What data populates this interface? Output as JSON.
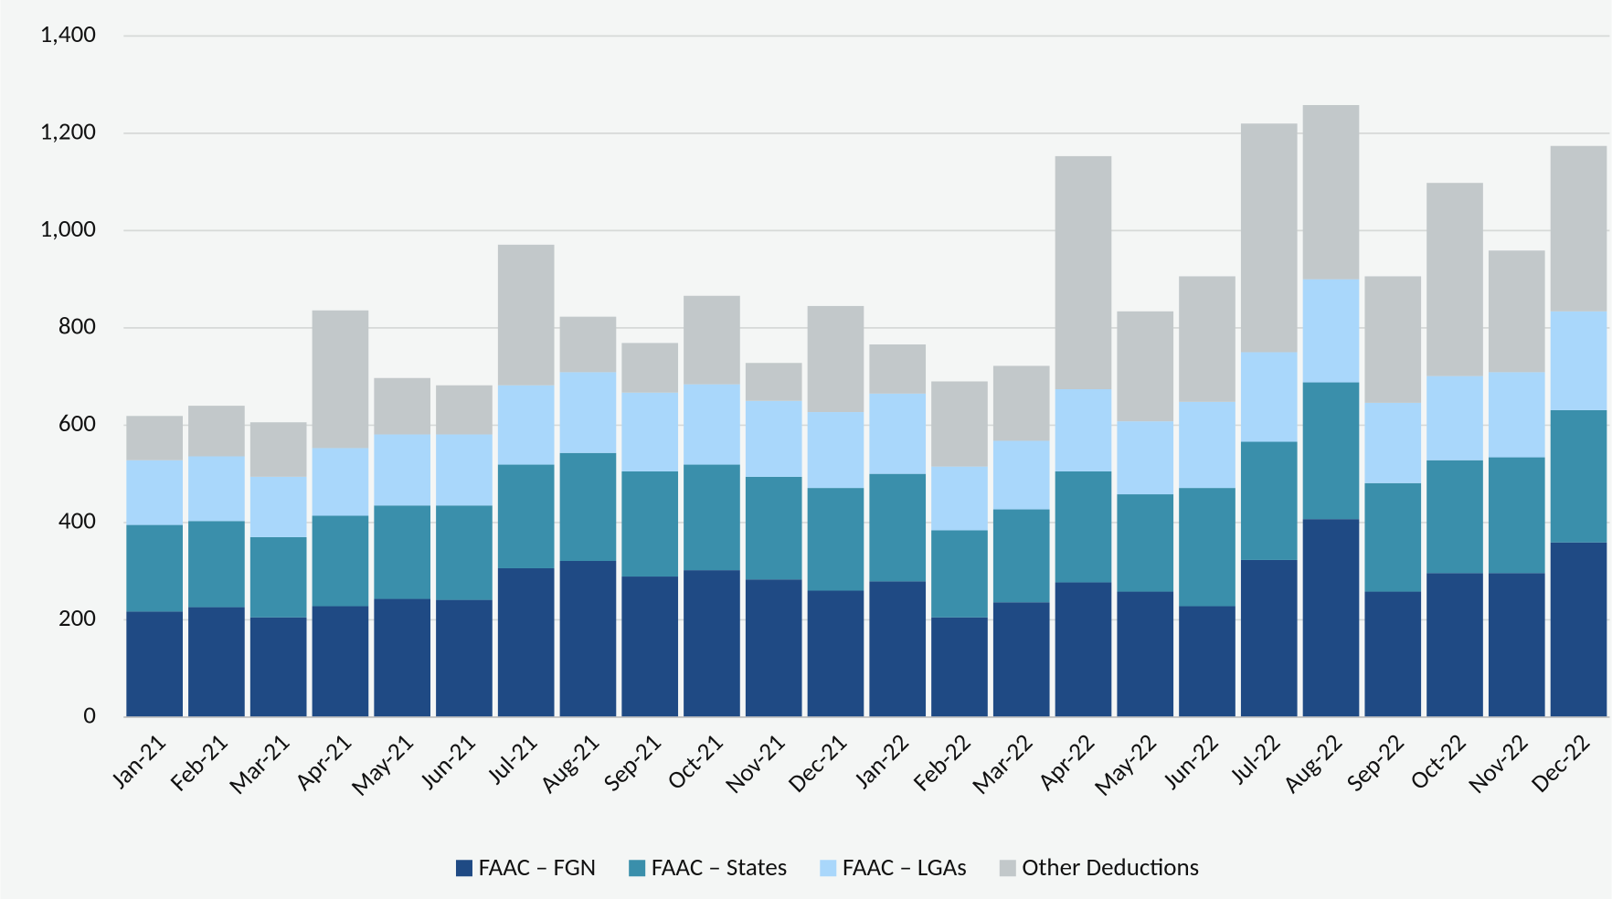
{
  "chart_data": {
    "type": "stacked_bar",
    "categories": [
      "Jan-21",
      "Feb-21",
      "Mar-21",
      "Apr-21",
      "May-21",
      "Jun-21",
      "Jul-21",
      "Aug-21",
      "Sep-21",
      "Oct-21",
      "Nov-21",
      "Dec-21",
      "Jan-22",
      "Feb-22",
      "Mar-22",
      "Apr-22",
      "May-22",
      "Jun-22",
      "Jul-22",
      "Aug-22",
      "Sep-22",
      "Oct-22",
      "Nov-22",
      "Dec-22"
    ],
    "series": [
      {
        "name": "FAAC – FGN",
        "color": "#1f4a84",
        "values": [
          217,
          226,
          205,
          228,
          243,
          241,
          306,
          321,
          289,
          302,
          283,
          260,
          279,
          205,
          236,
          277,
          258,
          228,
          323,
          407,
          258,
          296,
          296,
          359
        ]
      },
      {
        "name": "FAAC – States",
        "color": "#3a8fab",
        "values": [
          178,
          177,
          165,
          186,
          192,
          194,
          213,
          222,
          216,
          217,
          211,
          211,
          221,
          179,
          191,
          228,
          200,
          243,
          243,
          281,
          223,
          232,
          238,
          272
        ]
      },
      {
        "name": "FAAC – LGAs",
        "color": "#a9d7fb",
        "values": [
          133,
          133,
          124,
          139,
          146,
          146,
          163,
          166,
          162,
          165,
          156,
          156,
          165,
          131,
          141,
          169,
          150,
          177,
          184,
          212,
          165,
          173,
          175,
          203
        ]
      },
      {
        "name": "Other Deductions",
        "color": "#c2c8ca",
        "values": [
          91,
          104,
          112,
          283,
          116,
          101,
          289,
          114,
          102,
          182,
          78,
          218,
          101,
          175,
          154,
          479,
          226,
          258,
          470,
          358,
          260,
          397,
          250,
          340
        ]
      }
    ],
    "ylim": [
      0,
      1400
    ],
    "yticks": [
      0,
      200,
      400,
      600,
      800,
      {
        "value": 1000,
        "label": "1,000"
      },
      {
        "value": 1200,
        "label": "1,200"
      },
      {
        "value": 1400,
        "label": "1,400"
      }
    ],
    "grid": true,
    "legend": "bottom"
  }
}
